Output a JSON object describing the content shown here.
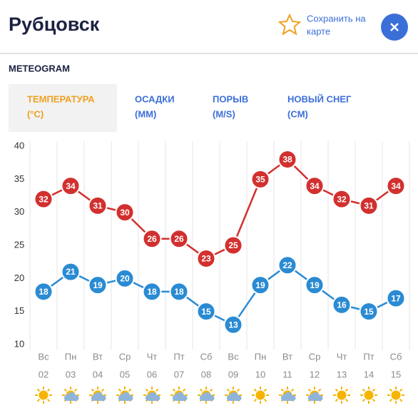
{
  "header": {
    "title": "Рубцовск",
    "save_line1": "Сохранить на",
    "save_line2": "карте"
  },
  "section": "METEOGRAM",
  "tabs": [
    {
      "title": "ТЕМПЕРАТУРА",
      "unit": "(°C)"
    },
    {
      "title": "ОСАДКИ",
      "unit": "(MM)"
    },
    {
      "title": "ПОРЫВ",
      "unit": "(M/S)"
    },
    {
      "title": "НОВЫЙ СНЕГ",
      "unit": "(CM)"
    }
  ],
  "chart_data": {
    "type": "line",
    "categories": [
      "Вс",
      "Пн",
      "Вт",
      "Ср",
      "Чт",
      "Пт",
      "Сб",
      "Вс",
      "Пн",
      "Вт",
      "Ср",
      "Чт",
      "Пт",
      "Сб"
    ],
    "dates": [
      "02",
      "03",
      "04",
      "05",
      "06",
      "07",
      "08",
      "09",
      "10",
      "11",
      "12",
      "13",
      "14",
      "15"
    ],
    "series": [
      {
        "color": "#d2302f",
        "values": [
          32,
          34,
          31,
          30,
          26,
          26,
          23,
          25,
          35,
          38,
          34,
          32,
          31,
          34
        ]
      },
      {
        "color": "#2a8bd3",
        "values": [
          18,
          21,
          19,
          20,
          18,
          18,
          15,
          13,
          19,
          22,
          19,
          16,
          15,
          17
        ]
      }
    ],
    "ylim": [
      10,
      40
    ],
    "yticks": [
      10,
      15,
      20,
      25,
      30,
      35,
      40
    ],
    "grid": true
  }
}
